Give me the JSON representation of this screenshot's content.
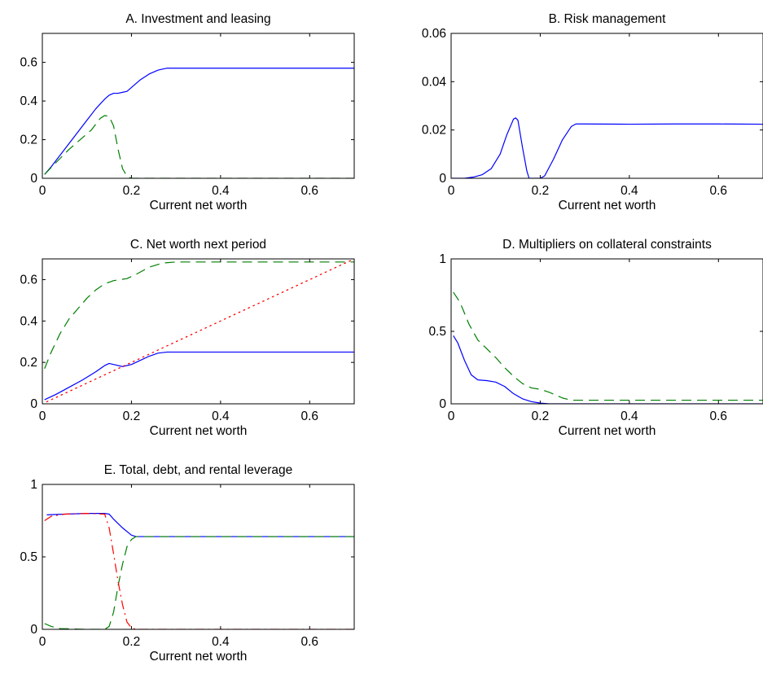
{
  "chart_data": [
    {
      "id": "A",
      "type": "line",
      "title": "A. Investment and leasing",
      "xlabel": "Current net worth",
      "ylabel": "",
      "xlim": [
        0,
        0.7
      ],
      "ylim": [
        0,
        0.75
      ],
      "xticks": [
        0,
        0.2,
        0.4,
        0.6
      ],
      "xtick_labels": [
        "0",
        "0.2",
        "0.4",
        "0.6"
      ],
      "yticks": [
        0,
        0.2,
        0.4,
        0.6
      ],
      "ytick_labels": [
        "0",
        "0.2",
        "0.4",
        "0.6"
      ],
      "grid": false,
      "series": [
        {
          "color": "#0000ff",
          "dash": "solid",
          "points": [
            [
              0.005,
              0.02
            ],
            [
              0.02,
              0.06
            ],
            [
              0.05,
              0.15
            ],
            [
              0.08,
              0.24
            ],
            [
              0.1,
              0.3
            ],
            [
              0.12,
              0.36
            ],
            [
              0.14,
              0.41
            ],
            [
              0.15,
              0.43
            ],
            [
              0.16,
              0.44
            ],
            [
              0.17,
              0.44
            ],
            [
              0.18,
              0.445
            ],
            [
              0.19,
              0.45
            ],
            [
              0.2,
              0.47
            ],
            [
              0.22,
              0.51
            ],
            [
              0.24,
              0.54
            ],
            [
              0.26,
              0.56
            ],
            [
              0.28,
              0.57
            ],
            [
              0.3,
              0.57
            ],
            [
              0.4,
              0.57
            ],
            [
              0.5,
              0.57
            ],
            [
              0.6,
              0.57
            ],
            [
              0.7,
              0.57
            ]
          ]
        },
        {
          "color": "#007f00",
          "dash": "longdash",
          "points": [
            [
              0.005,
              0.02
            ],
            [
              0.03,
              0.08
            ],
            [
              0.06,
              0.15
            ],
            [
              0.09,
              0.21
            ],
            [
              0.11,
              0.25
            ],
            [
              0.12,
              0.28
            ],
            [
              0.13,
              0.31
            ],
            [
              0.14,
              0.325
            ],
            [
              0.15,
              0.32
            ],
            [
              0.16,
              0.27
            ],
            [
              0.17,
              0.15
            ],
            [
              0.18,
              0.05
            ],
            [
              0.19,
              0.01
            ],
            [
              0.2,
              0
            ],
            [
              0.3,
              0
            ],
            [
              0.5,
              0
            ],
            [
              0.7,
              0
            ]
          ]
        }
      ]
    },
    {
      "id": "B",
      "type": "line",
      "title": "B. Risk management",
      "xlabel": "Current net worth",
      "ylabel": "",
      "xlim": [
        0,
        0.7
      ],
      "ylim": [
        0,
        0.06
      ],
      "xticks": [
        0,
        0.2,
        0.4,
        0.6
      ],
      "xtick_labels": [
        "0",
        "0.2",
        "0.4",
        "0.6"
      ],
      "yticks": [
        0,
        0.02,
        0.04,
        0.06
      ],
      "ytick_labels": [
        "0",
        "0.02",
        "0.04",
        "0.06"
      ],
      "grid": false,
      "series": [
        {
          "color": "#0000ff",
          "dash": "solid",
          "points": [
            [
              0,
              0
            ],
            [
              0.03,
              0
            ],
            [
              0.05,
              0.0005
            ],
            [
              0.07,
              0.0015
            ],
            [
              0.09,
              0.004
            ],
            [
              0.11,
              0.01
            ],
            [
              0.125,
              0.018
            ],
            [
              0.14,
              0.0245
            ],
            [
              0.145,
              0.025
            ],
            [
              0.15,
              0.024
            ],
            [
              0.16,
              0.013
            ],
            [
              0.17,
              0.003
            ],
            [
              0.175,
              0
            ],
            [
              0.2,
              0
            ],
            [
              0.21,
              0.001
            ],
            [
              0.23,
              0.008
            ],
            [
              0.25,
              0.016
            ],
            [
              0.27,
              0.0215
            ],
            [
              0.28,
              0.0225
            ],
            [
              0.3,
              0.0225
            ],
            [
              0.4,
              0.0224
            ],
            [
              0.5,
              0.0225
            ],
            [
              0.6,
              0.0225
            ],
            [
              0.7,
              0.0224
            ]
          ]
        }
      ]
    },
    {
      "id": "C",
      "type": "line",
      "title": "C. Net worth next period",
      "xlabel": "Current net worth",
      "ylabel": "",
      "xlim": [
        0,
        0.7
      ],
      "ylim": [
        0,
        0.7
      ],
      "xticks": [
        0,
        0.2,
        0.4,
        0.6
      ],
      "xtick_labels": [
        "0",
        "0.2",
        "0.4",
        "0.6"
      ],
      "yticks": [
        0,
        0.2,
        0.4,
        0.6
      ],
      "ytick_labels": [
        "0",
        "0.2",
        "0.4",
        "0.6"
      ],
      "grid": false,
      "series": [
        {
          "color": "#0000ff",
          "dash": "solid",
          "points": [
            [
              0.005,
              0.02
            ],
            [
              0.03,
              0.045
            ],
            [
              0.06,
              0.08
            ],
            [
              0.09,
              0.115
            ],
            [
              0.12,
              0.155
            ],
            [
              0.14,
              0.185
            ],
            [
              0.15,
              0.195
            ],
            [
              0.16,
              0.19
            ],
            [
              0.18,
              0.18
            ],
            [
              0.2,
              0.19
            ],
            [
              0.22,
              0.21
            ],
            [
              0.24,
              0.23
            ],
            [
              0.26,
              0.245
            ],
            [
              0.28,
              0.25
            ],
            [
              0.3,
              0.25
            ],
            [
              0.5,
              0.25
            ],
            [
              0.7,
              0.25
            ]
          ]
        },
        {
          "color": "#007f00",
          "dash": "longdash",
          "points": [
            [
              0.005,
              0.17
            ],
            [
              0.02,
              0.25
            ],
            [
              0.04,
              0.34
            ],
            [
              0.06,
              0.41
            ],
            [
              0.08,
              0.46
            ],
            [
              0.1,
              0.51
            ],
            [
              0.12,
              0.55
            ],
            [
              0.14,
              0.58
            ],
            [
              0.16,
              0.595
            ],
            [
              0.19,
              0.605
            ],
            [
              0.21,
              0.625
            ],
            [
              0.24,
              0.66
            ],
            [
              0.27,
              0.68
            ],
            [
              0.3,
              0.685
            ],
            [
              0.5,
              0.685
            ],
            [
              0.7,
              0.685
            ]
          ]
        },
        {
          "color": "#ff0000",
          "dash": "dotted",
          "points": [
            [
              0.01,
              0.01
            ],
            [
              0.7,
              0.7
            ]
          ]
        }
      ]
    },
    {
      "id": "D",
      "type": "line",
      "title": "D. Multipliers on collateral constraints",
      "xlabel": "Current net worth",
      "ylabel": "",
      "xlim": [
        0,
        0.7
      ],
      "ylim": [
        0,
        1
      ],
      "xticks": [
        0,
        0.2,
        0.4,
        0.6
      ],
      "xtick_labels": [
        "0",
        "0.2",
        "0.4",
        "0.6"
      ],
      "yticks": [
        0,
        0.5,
        1
      ],
      "ytick_labels": [
        "0",
        "0.5",
        "1"
      ],
      "grid": false,
      "series": [
        {
          "color": "#0000ff",
          "dash": "solid",
          "points": [
            [
              0.005,
              0.47
            ],
            [
              0.015,
              0.42
            ],
            [
              0.03,
              0.3
            ],
            [
              0.045,
              0.2
            ],
            [
              0.06,
              0.165
            ],
            [
              0.08,
              0.16
            ],
            [
              0.1,
              0.15
            ],
            [
              0.12,
              0.12
            ],
            [
              0.14,
              0.07
            ],
            [
              0.16,
              0.035
            ],
            [
              0.18,
              0.015
            ],
            [
              0.2,
              0.005
            ],
            [
              0.22,
              0
            ],
            [
              0.3,
              0
            ],
            [
              0.5,
              0
            ],
            [
              0.7,
              0
            ]
          ]
        },
        {
          "color": "#007f00",
          "dash": "longdash",
          "points": [
            [
              0.005,
              0.77
            ],
            [
              0.02,
              0.7
            ],
            [
              0.04,
              0.55
            ],
            [
              0.06,
              0.44
            ],
            [
              0.08,
              0.38
            ],
            [
              0.1,
              0.32
            ],
            [
              0.12,
              0.25
            ],
            [
              0.14,
              0.19
            ],
            [
              0.16,
              0.14
            ],
            [
              0.18,
              0.11
            ],
            [
              0.2,
              0.1
            ],
            [
              0.22,
              0.08
            ],
            [
              0.25,
              0.04
            ],
            [
              0.27,
              0.025
            ],
            [
              0.3,
              0.025
            ],
            [
              0.5,
              0.025
            ],
            [
              0.7,
              0.025
            ]
          ]
        }
      ]
    },
    {
      "id": "E",
      "type": "line",
      "title": "E. Total, debt, and rental leverage",
      "xlabel": "Current net worth",
      "ylabel": "",
      "xlim": [
        0,
        0.7
      ],
      "ylim": [
        0,
        1
      ],
      "xticks": [
        0,
        0.2,
        0.4,
        0.6
      ],
      "xtick_labels": [
        "0",
        "0.2",
        "0.4",
        "0.6"
      ],
      "yticks": [
        0,
        0.5,
        1
      ],
      "ytick_labels": [
        "0",
        "0.5",
        "1"
      ],
      "grid": false,
      "series": [
        {
          "color": "#0000ff",
          "dash": "solid",
          "points": [
            [
              0.01,
              0.79
            ],
            [
              0.05,
              0.795
            ],
            [
              0.1,
              0.8
            ],
            [
              0.14,
              0.8
            ],
            [
              0.15,
              0.795
            ],
            [
              0.16,
              0.76
            ],
            [
              0.18,
              0.7
            ],
            [
              0.2,
              0.65
            ],
            [
              0.21,
              0.64
            ],
            [
              0.3,
              0.64
            ],
            [
              0.5,
              0.64
            ],
            [
              0.7,
              0.64
            ]
          ]
        },
        {
          "color": "#007f00",
          "dash": "longdash",
          "points": [
            [
              0.005,
              0.04
            ],
            [
              0.02,
              0.02
            ],
            [
              0.04,
              0.005
            ],
            [
              0.1,
              0
            ],
            [
              0.14,
              0
            ],
            [
              0.15,
              0.02
            ],
            [
              0.16,
              0.12
            ],
            [
              0.17,
              0.3
            ],
            [
              0.18,
              0.45
            ],
            [
              0.19,
              0.57
            ],
            [
              0.2,
              0.62
            ],
            [
              0.21,
              0.64
            ],
            [
              0.3,
              0.64
            ],
            [
              0.5,
              0.64
            ],
            [
              0.7,
              0.64
            ]
          ]
        },
        {
          "color": "#ff0000",
          "dash": "dashdot",
          "points": [
            [
              0.005,
              0.75
            ],
            [
              0.02,
              0.78
            ],
            [
              0.05,
              0.795
            ],
            [
              0.1,
              0.8
            ],
            [
              0.14,
              0.795
            ],
            [
              0.15,
              0.7
            ],
            [
              0.16,
              0.52
            ],
            [
              0.17,
              0.33
            ],
            [
              0.18,
              0.17
            ],
            [
              0.19,
              0.05
            ],
            [
              0.2,
              0.01
            ],
            [
              0.21,
              0
            ],
            [
              0.3,
              0
            ],
            [
              0.5,
              0
            ],
            [
              0.7,
              0
            ]
          ]
        }
      ]
    }
  ]
}
